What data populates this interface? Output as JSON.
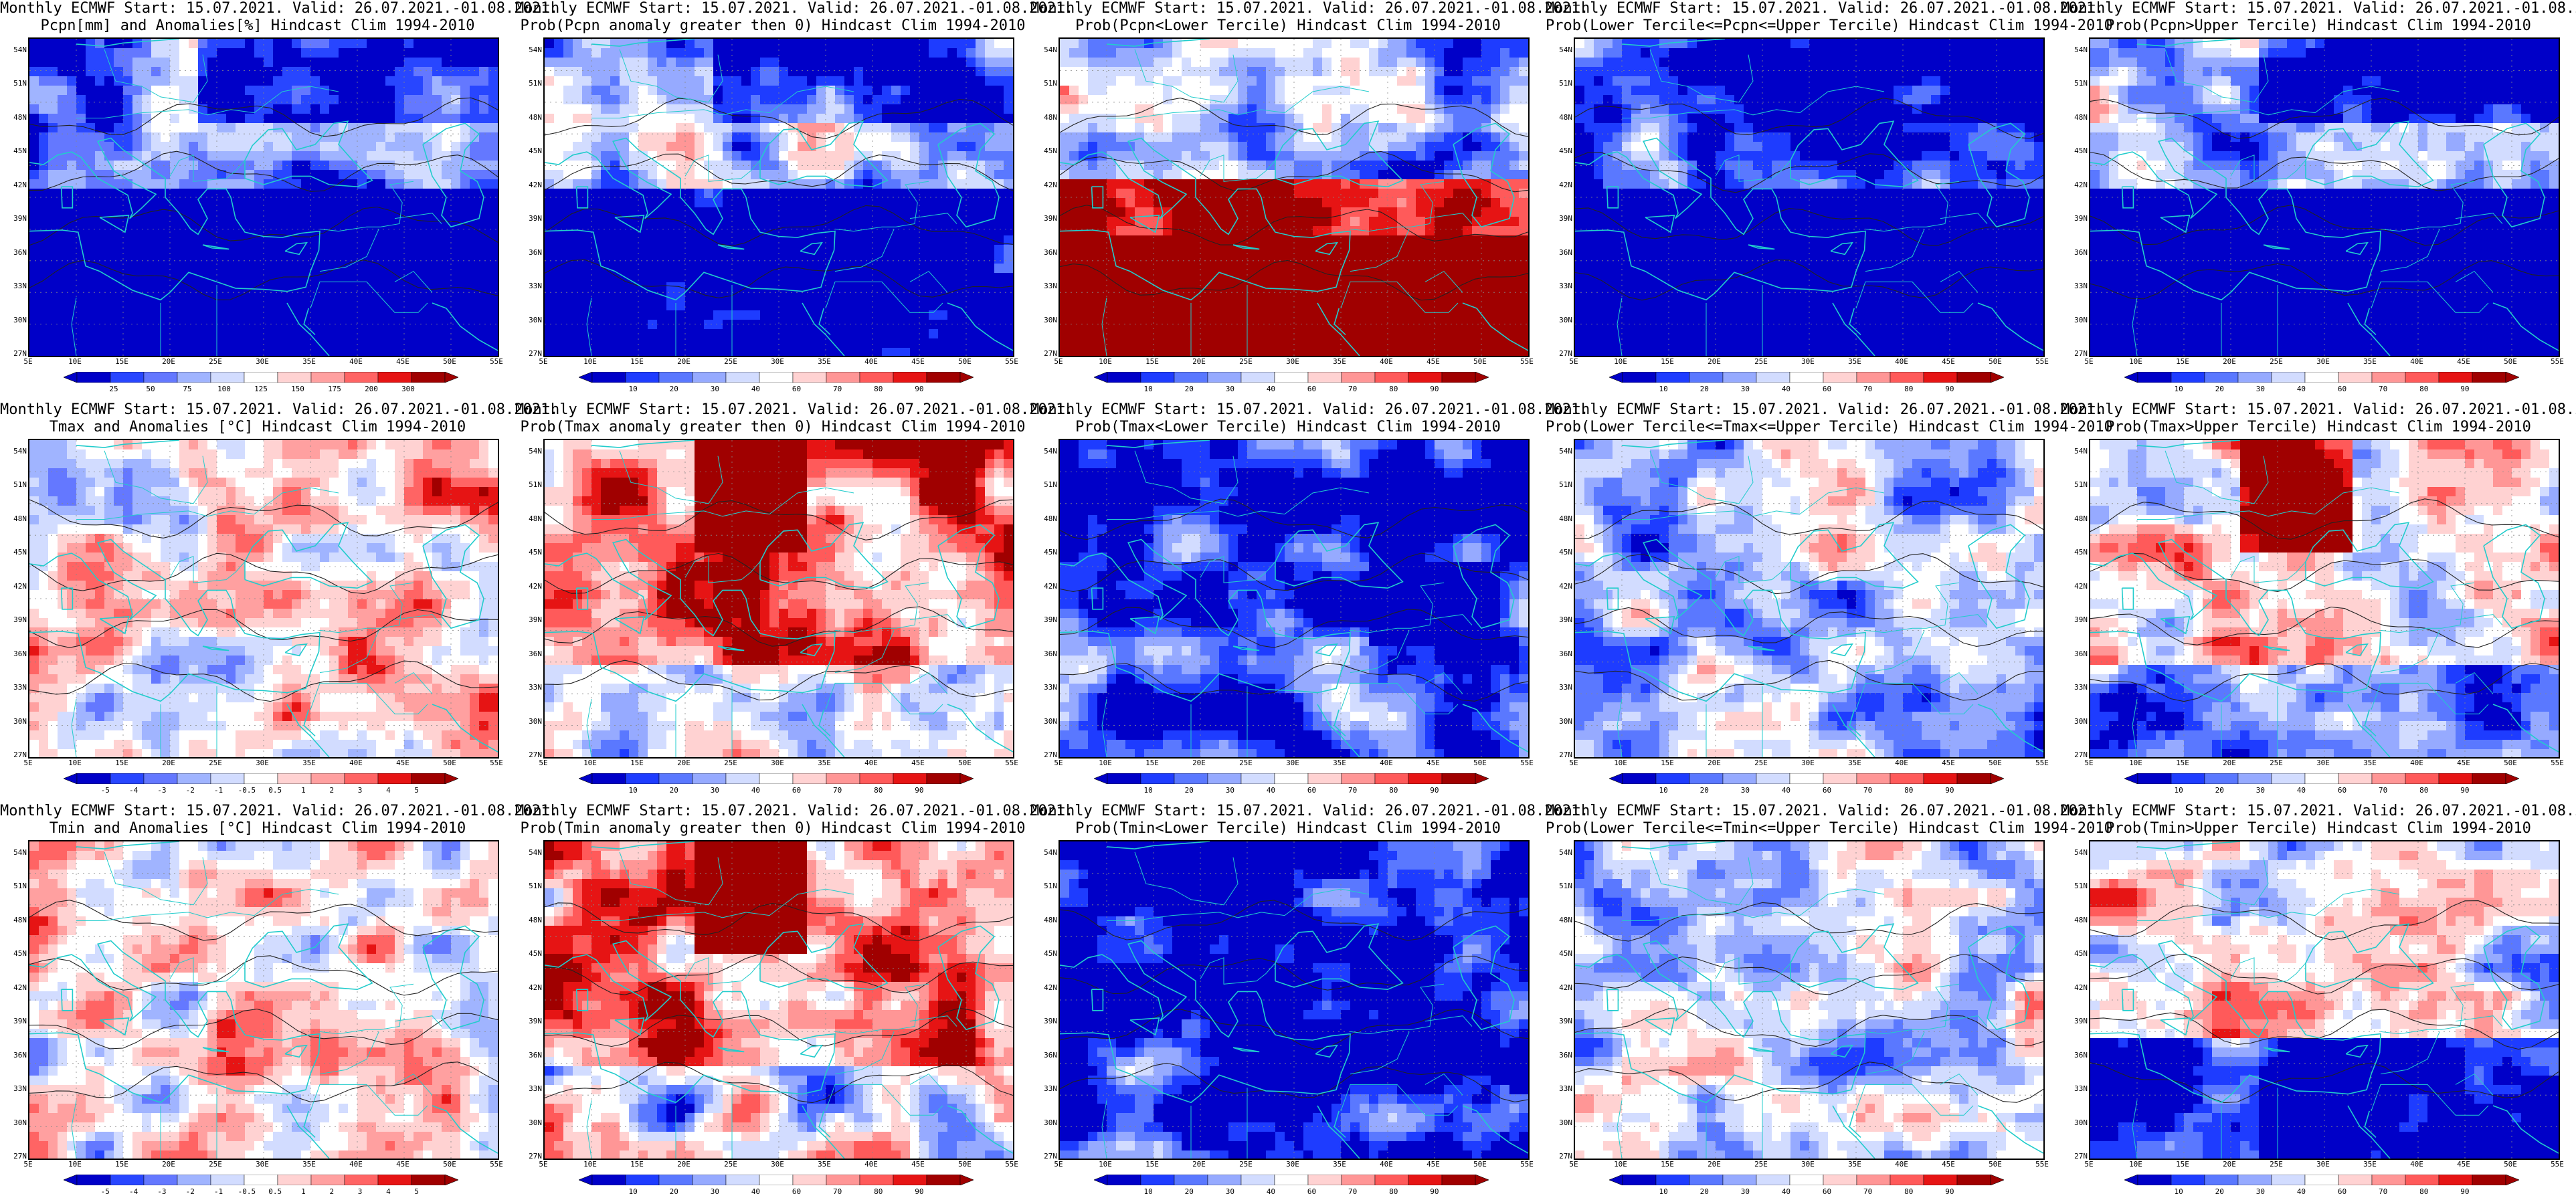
{
  "title_prefix": "Monthly ECMWF Start: 15.07.2021. Valid: 26.07.2021.-01.08.2021.",
  "lat_ticks": [
    "54N",
    "51N",
    "48N",
    "45N",
    "42N",
    "39N",
    "36N",
    "33N",
    "30N",
    "27N"
  ],
  "lon_ticks": [
    "5E",
    "10E",
    "15E",
    "20E",
    "25E",
    "30E",
    "35E",
    "40E",
    "45E",
    "50E",
    "55E"
  ],
  "colors": {
    "ramp_prob": [
      "#0000c8",
      "#1e3cff",
      "#5a78ff",
      "#96aaff",
      "#d2dcff",
      "#ffffff",
      "#ffd2d2",
      "#ff9696",
      "#ff5a5a",
      "#e61414",
      "#a00000"
    ],
    "ramp_anom": [
      "#0000c8",
      "#2846ff",
      "#6478ff",
      "#a0b4ff",
      "#d2dcff",
      "#ffffff",
      "#ffd2d2",
      "#ffa0a0",
      "#ff6464",
      "#e61414",
      "#a00000"
    ],
    "coast": "#22cccc",
    "contour": "#222222"
  },
  "panels": [
    {
      "title2": "Pcpn[mm] and Anomalies[%] Hindcast Clim 1994-2010",
      "bias": -0.9,
      "pattern": "pcpn",
      "ramp": "anom",
      "cbar_labels": [
        "25",
        "50",
        "75",
        "100",
        "125",
        "150",
        "175",
        "200",
        "300"
      ]
    },
    {
      "title2": "Prob(Pcpn anomaly greater then 0) Hindcast Clim 1994-2010",
      "bias": -0.6,
      "pattern": "pcpn",
      "ramp": "prob",
      "cbar_labels": [
        "10",
        "20",
        "30",
        "40",
        "60",
        "70",
        "80",
        "90"
      ]
    },
    {
      "title2": "Prob(Pcpn<Lower Tercile) Hindcast Clim 1994-2010",
      "bias": 0.6,
      "pattern": "pcpnlow",
      "ramp": "prob",
      "cbar_labels": [
        "10",
        "20",
        "30",
        "40",
        "60",
        "70",
        "80",
        "90"
      ]
    },
    {
      "title2": "Prob(Lower Tercile<=Pcpn<=Upper Tercile) Hindcast Clim 1994-2010",
      "bias": -1.1,
      "pattern": "pcpn",
      "ramp": "prob",
      "cbar_labels": [
        "10",
        "20",
        "30",
        "40",
        "60",
        "70",
        "80",
        "90"
      ]
    },
    {
      "title2": "Prob(Pcpn>Upper Tercile) Hindcast Clim 1994-2010",
      "bias": -0.7,
      "pattern": "pcpn",
      "ramp": "prob",
      "cbar_labels": [
        "10",
        "20",
        "30",
        "40",
        "60",
        "70",
        "80",
        "90"
      ]
    },
    {
      "title2": "Tmax and Anomalies [°C] Hindcast Clim 1994-2010",
      "bias": 0.15,
      "pattern": "temp",
      "ramp": "anom",
      "cbar_labels": [
        "-5",
        "-4",
        "-3",
        "-2",
        "-1",
        "-0.5",
        "0.5",
        "1",
        "2",
        "3",
        "4",
        "5"
      ]
    },
    {
      "title2": "Prob(Tmax anomaly greater then 0) Hindcast Clim 1994-2010",
      "bias": 0.55,
      "pattern": "tempwarm",
      "ramp": "prob",
      "cbar_labels": [
        "10",
        "20",
        "30",
        "40",
        "60",
        "70",
        "80",
        "90"
      ]
    },
    {
      "title2": "Prob(Tmax<Lower Tercile) Hindcast Clim 1994-2010",
      "bias": -0.85,
      "pattern": "temp",
      "ramp": "prob",
      "cbar_labels": [
        "10",
        "20",
        "30",
        "40",
        "60",
        "70",
        "80",
        "90"
      ]
    },
    {
      "title2": "Prob(Lower Tercile<=Tmax<=Upper Tercile) Hindcast Clim 1994-2010",
      "bias": -0.3,
      "pattern": "temp",
      "ramp": "prob",
      "cbar_labels": [
        "10",
        "20",
        "30",
        "40",
        "60",
        "70",
        "80",
        "90"
      ]
    },
    {
      "title2": "Prob(Tmax>Upper Tercile) Hindcast Clim 1994-2010",
      "bias": 0.1,
      "pattern": "tempwarm",
      "ramp": "prob",
      "cbar_labels": [
        "10",
        "20",
        "30",
        "40",
        "60",
        "70",
        "80",
        "90"
      ]
    },
    {
      "title2": "Tmin and Anomalies [°C] Hindcast Clim 1994-2010",
      "bias": 0.05,
      "pattern": "temp",
      "ramp": "anom",
      "cbar_labels": [
        "-5",
        "-4",
        "-3",
        "-2",
        "-1",
        "-0.5",
        "0.5",
        "1",
        "2",
        "3",
        "4",
        "5"
      ]
    },
    {
      "title2": "Prob(Tmin anomaly greater then 0) Hindcast Clim 1994-2010",
      "bias": 0.5,
      "pattern": "tempwarm",
      "ramp": "prob",
      "cbar_labels": [
        "10",
        "20",
        "30",
        "40",
        "60",
        "70",
        "80",
        "90"
      ]
    },
    {
      "title2": "Prob(Tmin<Lower Tercile) Hindcast Clim 1994-2010",
      "bias": -1.0,
      "pattern": "temp",
      "ramp": "prob",
      "cbar_labels": [
        "10",
        "20",
        "30",
        "40",
        "60",
        "70",
        "80",
        "90"
      ]
    },
    {
      "title2": "Prob(Lower Tercile<=Tmin<=Upper Tercile) Hindcast Clim 1994-2010",
      "bias": -0.25,
      "pattern": "temp",
      "ramp": "prob",
      "cbar_labels": [
        "10",
        "20",
        "30",
        "40",
        "60",
        "70",
        "80",
        "90"
      ]
    },
    {
      "title2": "Prob(Tmin>Upper Tercile) Hindcast Clim 1994-2010",
      "bias": -0.2,
      "pattern": "tempcool",
      "ramp": "prob",
      "cbar_labels": [
        "10",
        "20",
        "30",
        "40",
        "60",
        "70",
        "80",
        "90"
      ]
    }
  ]
}
